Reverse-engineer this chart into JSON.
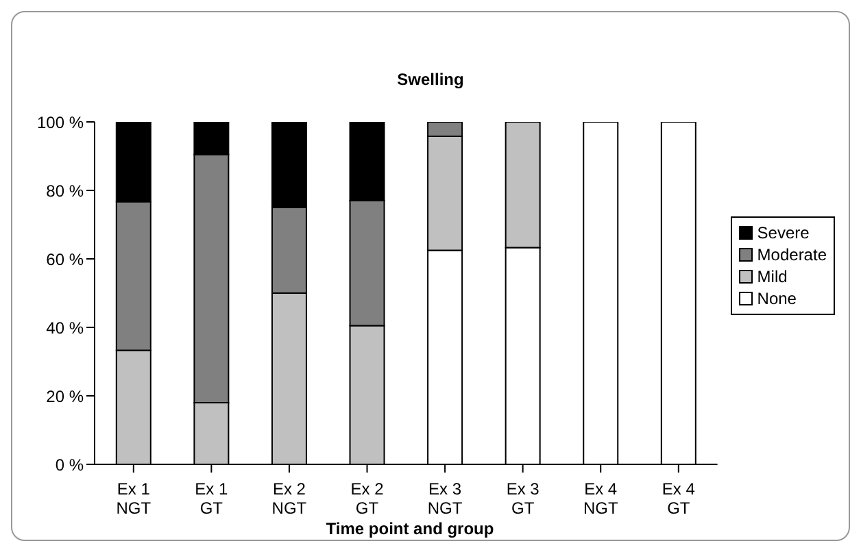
{
  "chart_data": {
    "type": "bar",
    "title": "Swelling",
    "xlabel": "Time point and group",
    "categories": [
      "Ex 1\nNGT",
      "Ex 1\nGT",
      "Ex 2\nNGT",
      "Ex 2\nGT",
      "Ex 3\nNGT",
      "Ex 3\nGT",
      "Ex 4\nNGT",
      "Ex 4\nGT"
    ],
    "stacked": true,
    "series": [
      {
        "name": "None",
        "color": "#ffffff",
        "values": [
          0,
          0,
          0,
          0,
          62.5,
          63.3,
          100,
          100
        ]
      },
      {
        "name": "Mild",
        "color": "#c0c0c0",
        "values": [
          33.3,
          18,
          50,
          40.5,
          33.3,
          36.7,
          0,
          0
        ]
      },
      {
        "name": "Moderate",
        "color": "#808080",
        "values": [
          43.4,
          72.5,
          25,
          36.5,
          4.2,
          0,
          0,
          0
        ]
      },
      {
        "name": "Severe",
        "color": "#000000",
        "values": [
          23.3,
          9.5,
          25,
          23,
          0,
          0,
          0,
          0
        ]
      }
    ],
    "ylim": [
      0,
      100
    ],
    "yticks": [
      {
        "value": 0,
        "label": "0 %"
      },
      {
        "value": 20,
        "label": "20 %"
      },
      {
        "value": 40,
        "label": "40 %"
      },
      {
        "value": 60,
        "label": "60 %"
      },
      {
        "value": 80,
        "label": "80 %"
      },
      {
        "value": 100,
        "label": "100 %"
      }
    ],
    "grid": false,
    "legend": "right"
  }
}
